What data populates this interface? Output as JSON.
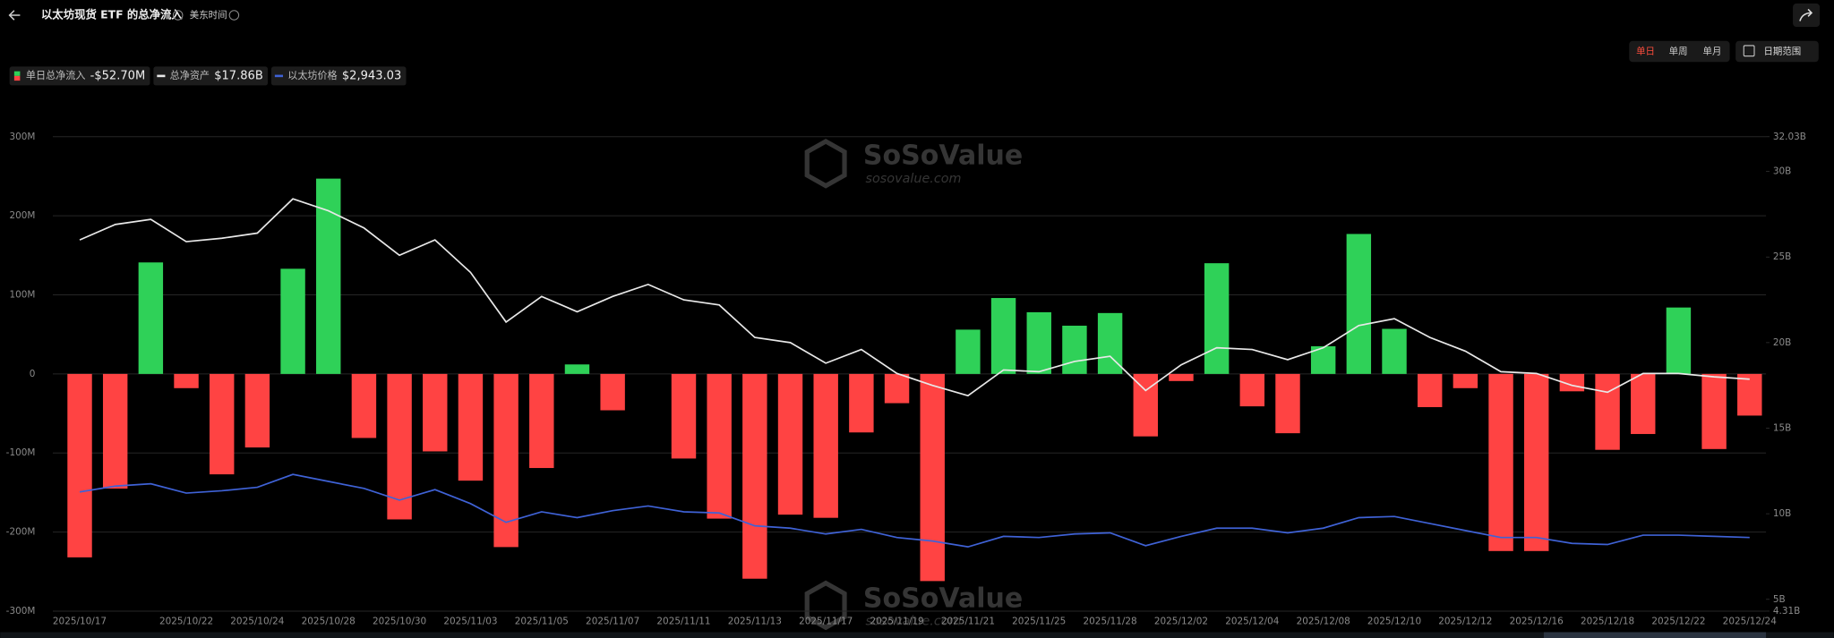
{
  "ui": {
    "title": "以太坊现货 ETF 的总净流入",
    "timezone": "美东时间",
    "periods": [
      "单日",
      "单周",
      "单月"
    ],
    "date_range": "日期范围",
    "watermark": {
      "name": "SoSoValue",
      "site": "sosovalue.com"
    }
  },
  "chart_data": {
    "type": "combo",
    "categories": [
      "2025/10/17",
      null,
      null,
      "2025/10/22",
      null,
      "2025/10/24",
      null,
      "2025/10/28",
      null,
      "2025/10/30",
      null,
      "2025/11/03",
      null,
      "2025/11/05",
      null,
      "2025/11/07",
      null,
      "2025/11/11",
      null,
      "2025/11/13",
      null,
      "2025/11/17",
      null,
      "2025/11/19",
      null,
      "2025/11/21",
      null,
      "2025/11/25",
      null,
      "2025/11/28",
      null,
      "2025/12/02",
      null,
      "2025/12/04",
      null,
      "2025/12/08",
      null,
      "2025/12/10",
      null,
      "2025/12/12",
      null,
      "2025/12/16",
      null,
      "2025/12/18",
      null,
      "2025/12/22",
      null,
      "2025/12/24"
    ],
    "series": [
      {
        "name": "单日总净流入",
        "type": "bar",
        "color": "#2fd158",
        "negative_color": "#ff4343",
        "legend_value": "-$52.70M",
        "values": [
          -232,
          -145,
          141,
          -18,
          -127,
          -93,
          133,
          247,
          -81,
          -184,
          -98,
          -135,
          -219,
          -119,
          12,
          -46,
          0,
          -107,
          -183,
          -259,
          -178,
          -182,
          -74,
          -37,
          -262,
          56,
          96,
          78,
          61,
          77,
          -79,
          -9,
          140,
          -41,
          -75,
          35,
          177,
          57,
          -42,
          -18,
          -224,
          -224,
          -22,
          -96,
          -76,
          84,
          -95,
          -52.7
        ]
      },
      {
        "name": "总净资产",
        "type": "line",
        "axis": "y2",
        "color": "#e8e8e8",
        "legend_value": "$17.86B",
        "values": [
          26.0,
          26.9,
          27.2,
          25.9,
          26.1,
          26.4,
          28.4,
          27.7,
          26.7,
          25.1,
          26.0,
          24.1,
          21.2,
          22.7,
          21.8,
          22.7,
          23.4,
          22.5,
          22.2,
          20.3,
          20.0,
          18.8,
          19.6,
          18.2,
          17.5,
          16.9,
          18.4,
          18.3,
          18.9,
          19.2,
          17.2,
          18.7,
          19.7,
          19.6,
          19.0,
          19.7,
          21.0,
          21.4,
          20.3,
          19.5,
          18.3,
          18.2,
          17.5,
          17.1,
          18.2,
          18.2,
          18.0,
          17.86
        ]
      },
      {
        "name": "以太坊价格",
        "type": "line",
        "color": "#3f62d6",
        "legend_value": "$2,943.03",
        "values": [
          3899,
          4021,
          4070,
          3874,
          3923,
          3997,
          4266,
          4119,
          3972,
          3727,
          3948,
          3654,
          3262,
          3483,
          3360,
          3507,
          3605,
          3483,
          3458,
          3189,
          3140,
          3017,
          3115,
          2943,
          2870,
          2747,
          2968,
          2943,
          3017,
          3041,
          2772,
          2968,
          3140,
          3140,
          3041,
          3140,
          3360,
          3385,
          3238,
          3091,
          2943,
          2943,
          2821,
          2796,
          2992,
          2992,
          2968,
          2943.03
        ]
      }
    ],
    "ylim": [
      -300,
      300
    ],
    "yticks": [
      {
        "value": 300,
        "label": "300M"
      },
      {
        "value": 200,
        "label": "200M"
      },
      {
        "value": 100,
        "label": "100M"
      },
      0,
      {
        "value": -100,
        "label": "-100M"
      },
      {
        "value": -200,
        "label": "-200M"
      },
      {
        "value": -300,
        "label": "-300M"
      }
    ],
    "y2lim": [
      4.31,
      32.03
    ],
    "y2ticks": [
      {
        "value": 32.03,
        "label": "32.03B"
      },
      {
        "value": 30,
        "label": "30B"
      },
      {
        "value": 25,
        "label": "25B"
      },
      {
        "value": 20,
        "label": "20B"
      },
      {
        "value": 15,
        "label": "15B"
      },
      {
        "value": 10,
        "label": "10B"
      },
      {
        "value": 5,
        "label": "5B"
      },
      {
        "value": 4.31,
        "label": "4.31B"
      }
    ],
    "grid": true
  }
}
